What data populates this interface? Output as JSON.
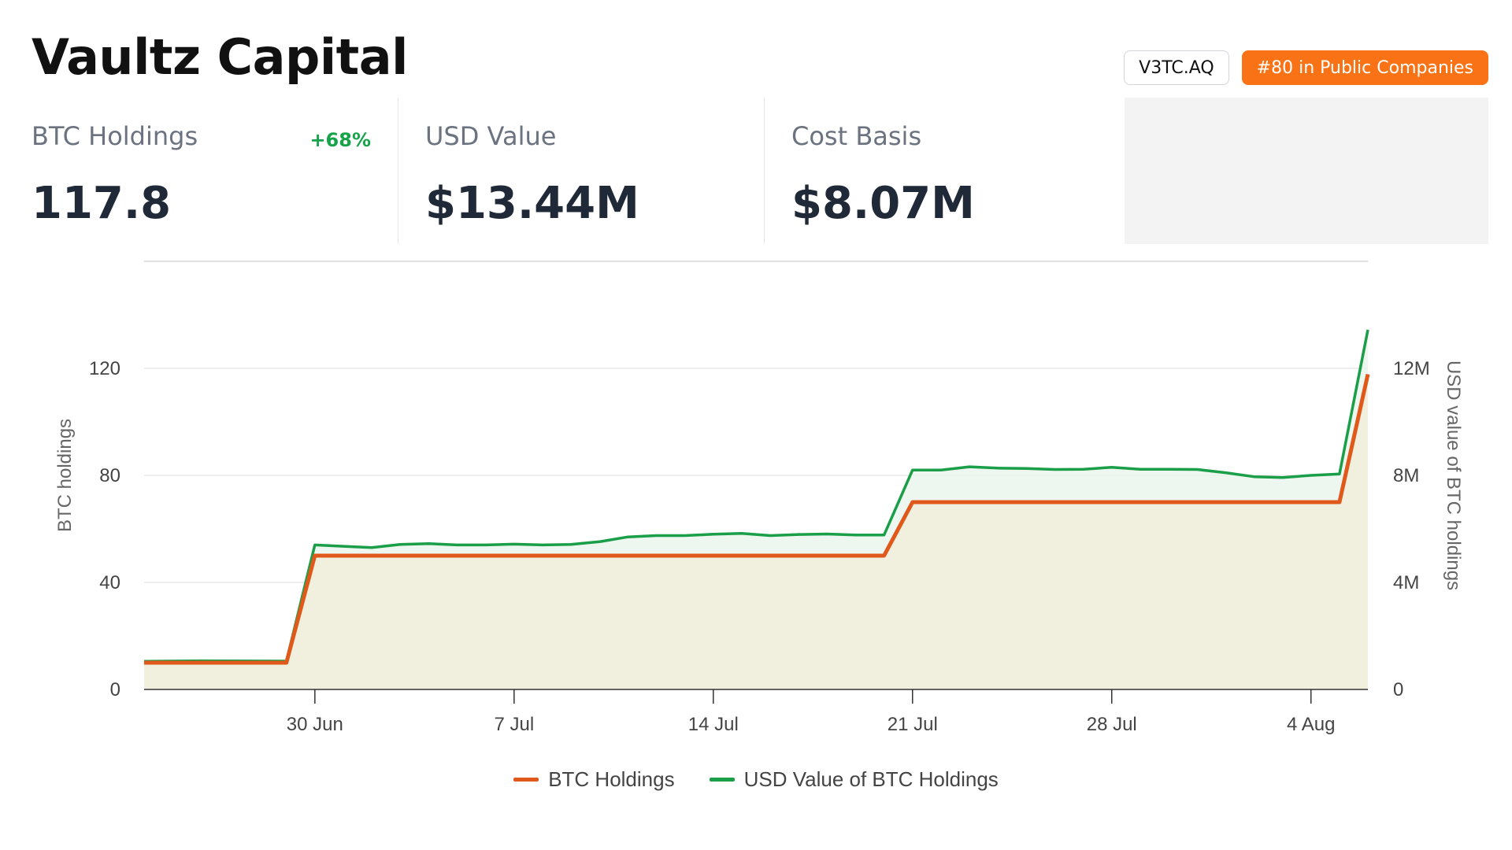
{
  "header": {
    "title": "Vaultz Capital",
    "ticker": "V3TC.AQ",
    "rank": "#80 in Public Companies"
  },
  "stats": [
    {
      "label": "BTC Holdings",
      "value": "117.8",
      "change": "+68%"
    },
    {
      "label": "USD Value",
      "value": "$13.44M"
    },
    {
      "label": "Cost Basis",
      "value": "$8.07M"
    }
  ],
  "colors": {
    "btc_line": "#e0591b",
    "usd_line": "#1a9e48",
    "area_fill": "#f1f0df",
    "rank_badge": "#f97316",
    "change_positive": "#16a34a"
  },
  "chart_data": {
    "type": "line",
    "x_axis": {
      "ticks": [
        "30 Jun",
        "7 Jul",
        "14 Jul",
        "21 Jul",
        "28 Jul",
        "4 Aug"
      ]
    },
    "y_left": {
      "label": "BTC holdings",
      "range": [
        0,
        160
      ],
      "ticks": [
        "0",
        "40",
        "80",
        "120"
      ],
      "tick_values": [
        0,
        40,
        80,
        120
      ]
    },
    "y_right": {
      "label": "USD value of BTC holdings",
      "range": [
        0,
        16000000
      ],
      "ticks": [
        "0",
        "4M",
        "8M",
        "12M"
      ],
      "tick_values": [
        0,
        4000000,
        8000000,
        12000000
      ]
    },
    "x_range": [
      "2025-06-24",
      "2025-08-06"
    ],
    "grid": true,
    "legend_position": "bottom",
    "series": [
      {
        "name": "BTC Holdings",
        "axis": "left",
        "points": [
          [
            "2025-06-24",
            10
          ],
          [
            "2025-06-29",
            10
          ],
          [
            "2025-06-30",
            50
          ],
          [
            "2025-07-20",
            50
          ],
          [
            "2025-07-21",
            70
          ],
          [
            "2025-08-05",
            70
          ],
          [
            "2025-08-06",
            117.8
          ]
        ]
      },
      {
        "name": "USD Value of BTC Holdings",
        "axis": "right",
        "points": [
          [
            "2025-06-24",
            1050000
          ],
          [
            "2025-06-26",
            1070000
          ],
          [
            "2025-06-29",
            1060000
          ],
          [
            "2025-06-30",
            5400000
          ],
          [
            "2025-07-01",
            5350000
          ],
          [
            "2025-07-02",
            5300000
          ],
          [
            "2025-07-03",
            5420000
          ],
          [
            "2025-07-04",
            5450000
          ],
          [
            "2025-07-05",
            5400000
          ],
          [
            "2025-07-06",
            5400000
          ],
          [
            "2025-07-07",
            5430000
          ],
          [
            "2025-07-08",
            5400000
          ],
          [
            "2025-07-09",
            5420000
          ],
          [
            "2025-07-10",
            5520000
          ],
          [
            "2025-07-11",
            5700000
          ],
          [
            "2025-07-12",
            5750000
          ],
          [
            "2025-07-13",
            5750000
          ],
          [
            "2025-07-14",
            5800000
          ],
          [
            "2025-07-15",
            5830000
          ],
          [
            "2025-07-16",
            5750000
          ],
          [
            "2025-07-17",
            5790000
          ],
          [
            "2025-07-18",
            5810000
          ],
          [
            "2025-07-19",
            5770000
          ],
          [
            "2025-07-20",
            5770000
          ],
          [
            "2025-07-21",
            8200000
          ],
          [
            "2025-07-22",
            8200000
          ],
          [
            "2025-07-23",
            8320000
          ],
          [
            "2025-07-24",
            8270000
          ],
          [
            "2025-07-25",
            8260000
          ],
          [
            "2025-07-26",
            8220000
          ],
          [
            "2025-07-27",
            8230000
          ],
          [
            "2025-07-28",
            8300000
          ],
          [
            "2025-07-29",
            8230000
          ],
          [
            "2025-07-30",
            8230000
          ],
          [
            "2025-07-31",
            8220000
          ],
          [
            "2025-08-01",
            8100000
          ],
          [
            "2025-08-02",
            7950000
          ],
          [
            "2025-08-03",
            7920000
          ],
          [
            "2025-08-04",
            8000000
          ],
          [
            "2025-08-05",
            8050000
          ],
          [
            "2025-08-06",
            13440000
          ]
        ]
      }
    ]
  }
}
